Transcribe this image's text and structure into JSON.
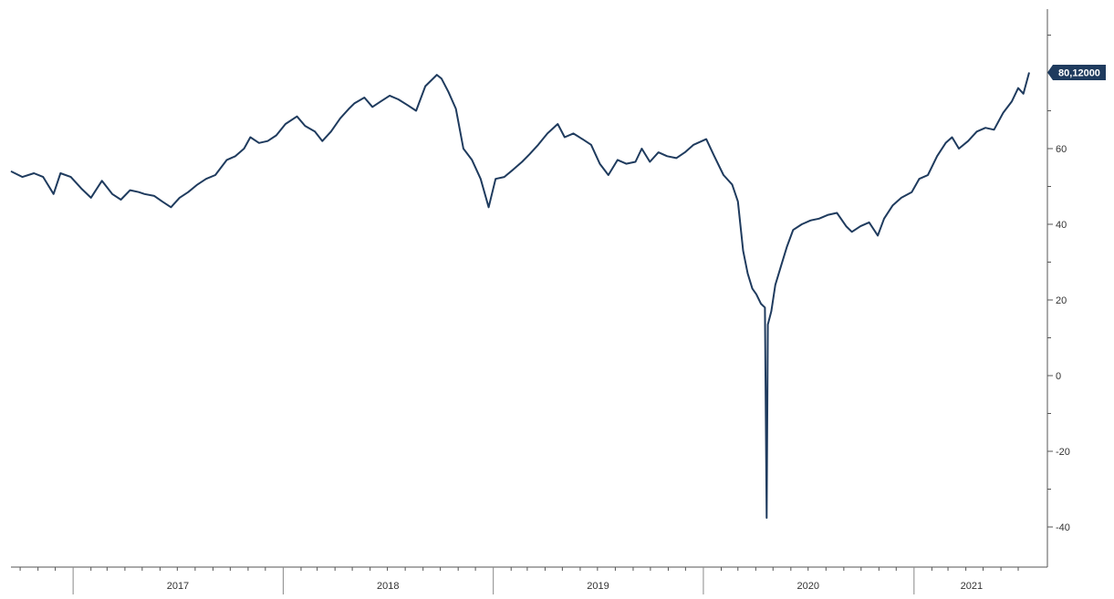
{
  "chart_data": {
    "type": "line",
    "title": "",
    "xlabel": "",
    "ylabel": "",
    "x_range": [
      "2016-09-15",
      "2021-07-20"
    ],
    "ylim": [
      -46,
      100
    ],
    "y_ticks": [
      -40,
      -20,
      0,
      20,
      40,
      60,
      80
    ],
    "y_tick_labels": [
      "-40",
      "-20",
      "0",
      "20",
      "40",
      "60",
      ""
    ],
    "y_axis_side": "right",
    "x_axis_labels": [
      "2017",
      "2018",
      "2019",
      "2020",
      "2021"
    ],
    "grid": false,
    "legend": "none",
    "last_value_label": "80,12000",
    "colors": {
      "line": "#1f3b5e",
      "axis": "#555555",
      "label_box": "#1f3b5e",
      "label_text": "#ffffff"
    },
    "series": [
      {
        "x": [
          "2016-09-15",
          "2016-10-05",
          "2016-10-25",
          "2016-11-10",
          "2016-11-28",
          "2016-12-10",
          "2016-12-28",
          "2017-01-15",
          "2017-02-01",
          "2017-02-20",
          "2017-03-10",
          "2017-03-25",
          "2017-04-10",
          "2017-04-25",
          "2017-05-05",
          "2017-05-22",
          "2017-06-05",
          "2017-06-20",
          "2017-07-05",
          "2017-07-20",
          "2017-08-05",
          "2017-08-20",
          "2017-09-05",
          "2017-09-25",
          "2017-10-10",
          "2017-10-25",
          "2017-11-05",
          "2017-11-20",
          "2017-12-05",
          "2017-12-20",
          "2018-01-05",
          "2018-01-25",
          "2018-02-08",
          "2018-02-25",
          "2018-03-10",
          "2018-03-25",
          "2018-04-10",
          "2018-04-25",
          "2018-05-05",
          "2018-05-22",
          "2018-06-05",
          "2018-06-20",
          "2018-07-05",
          "2018-07-20",
          "2018-08-05",
          "2018-08-20",
          "2018-09-05",
          "2018-09-25",
          "2018-10-03",
          "2018-10-15",
          "2018-10-28",
          "2018-11-10",
          "2018-11-25",
          "2018-12-10",
          "2018-12-24",
          "2019-01-05",
          "2019-01-20",
          "2019-02-05",
          "2019-02-20",
          "2019-03-05",
          "2019-03-20",
          "2019-04-05",
          "2019-04-23",
          "2019-05-05",
          "2019-05-20",
          "2019-06-05",
          "2019-06-20",
          "2019-07-05",
          "2019-07-20",
          "2019-08-05",
          "2019-08-20",
          "2019-09-05",
          "2019-09-16",
          "2019-09-30",
          "2019-10-15",
          "2019-10-30",
          "2019-11-15",
          "2019-11-30",
          "2019-12-15",
          "2020-01-06",
          "2020-01-20",
          "2020-02-05",
          "2020-02-20",
          "2020-03-01",
          "2020-03-10",
          "2020-03-18",
          "2020-03-26",
          "2020-04-02",
          "2020-04-10",
          "2020-04-17",
          "2020-04-20",
          "2020-04-22",
          "2020-04-28",
          "2020-05-05",
          "2020-05-15",
          "2020-05-25",
          "2020-06-05",
          "2020-06-20",
          "2020-07-05",
          "2020-07-20",
          "2020-08-05",
          "2020-08-20",
          "2020-09-05",
          "2020-09-15",
          "2020-09-30",
          "2020-10-15",
          "2020-10-30",
          "2020-11-10",
          "2020-11-25",
          "2020-12-10",
          "2020-12-28",
          "2021-01-10",
          "2021-01-25",
          "2021-02-10",
          "2021-02-25",
          "2021-03-08",
          "2021-03-20",
          "2021-04-05",
          "2021-04-20",
          "2021-05-05",
          "2021-05-20",
          "2021-06-05",
          "2021-06-20",
          "2021-07-01",
          "2021-07-10",
          "2021-07-20"
        ],
        "y": [
          54.0,
          52.5,
          53.5,
          52.5,
          48.0,
          53.5,
          52.5,
          49.5,
          47.0,
          51.5,
          48.0,
          46.5,
          49.0,
          48.5,
          48.0,
          47.5,
          46.0,
          44.5,
          47.0,
          48.5,
          50.5,
          52.0,
          53.0,
          57.0,
          58.0,
          60.0,
          63.0,
          61.5,
          62.0,
          63.5,
          66.5,
          68.5,
          66.0,
          64.5,
          62.0,
          64.5,
          68.0,
          70.5,
          72.0,
          73.5,
          71.0,
          72.5,
          74.0,
          73.0,
          71.5,
          70.0,
          76.5,
          79.5,
          78.5,
          75.0,
          70.5,
          60.0,
          57.0,
          52.0,
          44.5,
          52.0,
          52.5,
          54.5,
          56.5,
          58.5,
          61.0,
          64.0,
          66.5,
          63.0,
          64.0,
          62.5,
          61.0,
          56.0,
          53.0,
          57.0,
          56.0,
          56.5,
          60.0,
          56.5,
          59.0,
          58.0,
          57.5,
          59.0,
          61.0,
          62.5,
          58.0,
          53.0,
          50.5,
          46.0,
          33.0,
          27.0,
          23.0,
          21.5,
          19.0,
          18.0,
          -37.6,
          13.5,
          17.0,
          24.0,
          29.0,
          34.0,
          38.5,
          40.0,
          41.0,
          41.5,
          42.5,
          43.0,
          39.5,
          38.0,
          39.5,
          40.5,
          37.0,
          41.5,
          45.0,
          47.0,
          48.5,
          52.0,
          53.0,
          58.0,
          61.5,
          63.0,
          60.0,
          62.0,
          64.5,
          65.5,
          65.0,
          69.5,
          72.5,
          76.0,
          74.5,
          80.12
        ]
      }
    ]
  }
}
